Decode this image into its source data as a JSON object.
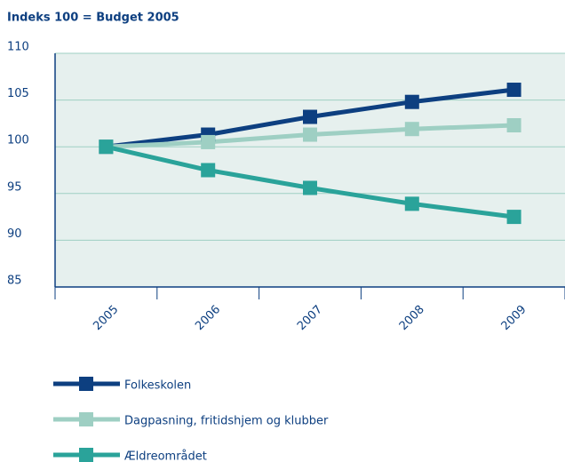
{
  "chart_data": {
    "type": "line",
    "title": "Indeks 100 = Budget 2005",
    "categories": [
      "2005",
      "2006",
      "2007",
      "2008",
      "2009"
    ],
    "series": [
      {
        "name": "Folkeskolen",
        "color": "#0d3f80",
        "values": [
          100,
          101.3,
          103.2,
          104.8,
          106.1
        ]
      },
      {
        "name": "Dagpasning, fritidshjem og klubber",
        "color": "#9ecfc3",
        "values": [
          100,
          100.5,
          101.3,
          101.9,
          102.3
        ]
      },
      {
        "name": "Ældreområdet",
        "color": "#2aa39a",
        "values": [
          100,
          97.5,
          95.6,
          93.9,
          92.5
        ]
      }
    ],
    "ylim": [
      85,
      110
    ],
    "yticks": [
      85,
      90,
      95,
      100,
      105,
      110
    ],
    "grid": true
  }
}
